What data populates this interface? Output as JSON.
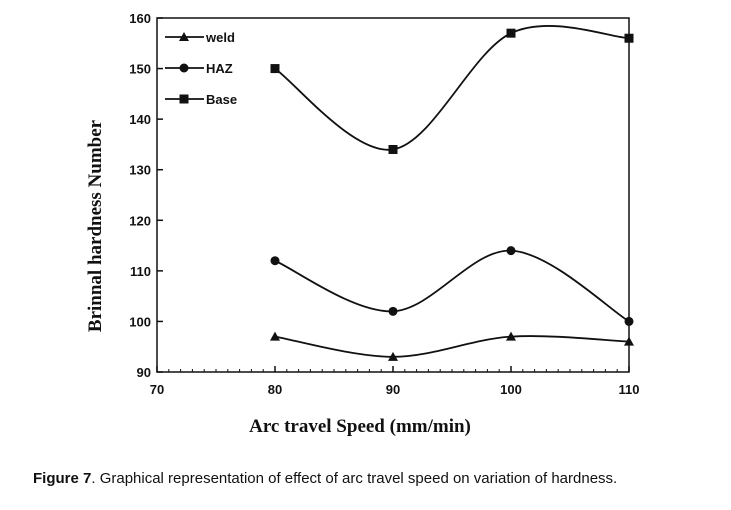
{
  "chart_data": {
    "type": "line",
    "xlabel": "Arc travel Speed (mm/min)",
    "ylabel": "Brinnal hardness Number",
    "xlim": [
      70,
      110
    ],
    "ylim": [
      90,
      160
    ],
    "x_ticks": [
      "70",
      "80",
      "90",
      "100",
      "110"
    ],
    "y_ticks": [
      "90",
      "100",
      "110",
      "120",
      "130",
      "140",
      "150",
      "160"
    ],
    "x": [
      80,
      90,
      100,
      110
    ],
    "series": [
      {
        "name": "weld",
        "marker": "triangle",
        "values": [
          97,
          93,
          97,
          96
        ]
      },
      {
        "name": "HAZ",
        "marker": "circle",
        "values": [
          112,
          102,
          114,
          100
        ]
      },
      {
        "name": "Base",
        "marker": "square",
        "values": [
          150,
          134,
          157,
          156
        ]
      }
    ],
    "legend_position": "top-left",
    "grid": false,
    "smooth": true
  },
  "caption": {
    "label": "Figure 7",
    "text": ". Graphical representation of effect of arc travel speed on variation of hardness."
  }
}
